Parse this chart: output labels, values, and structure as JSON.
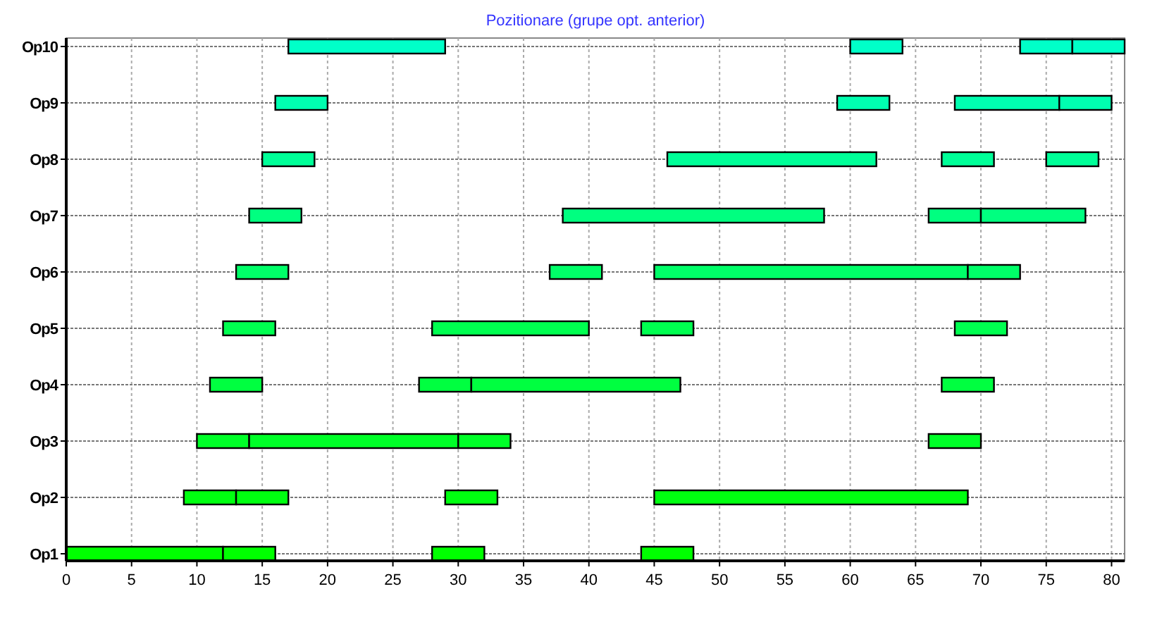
{
  "chart_data": {
    "type": "bar",
    "orientation": "horizontal",
    "title": "Pozitionare (grupe opt. anterior)",
    "categories": [
      "Op10",
      "Op9",
      "Op8",
      "Op7",
      "Op6",
      "Op5",
      "Op4",
      "Op3",
      "Op2",
      "Op1"
    ],
    "series": [
      {
        "base": [
          17,
          16,
          15,
          14,
          13,
          12,
          11,
          10,
          9,
          0
        ],
        "values": [
          12,
          4,
          4,
          4,
          4,
          4,
          4,
          4,
          4,
          12
        ],
        "colors": [
          "#00ffc8",
          "#00ffb0",
          "#00ff98",
          "#00ff80",
          "#00ff68",
          "#00ff50",
          "#00ff40",
          "#00ff28",
          "#00ff10",
          "#00ff00"
        ]
      },
      {
        "base": [
          60,
          59,
          46,
          38,
          37,
          28,
          27,
          14,
          13,
          12
        ],
        "values": [
          4,
          4,
          16,
          20,
          4,
          12,
          4,
          16,
          4,
          4
        ],
        "colors": [
          "#00ffc8",
          "#00ffb0",
          "#00ff98",
          "#00ff80",
          "#00ff68",
          "#00ff50",
          "#00ff40",
          "#00ff28",
          "#00ff10",
          "#00ff00"
        ]
      },
      {
        "base": [
          73,
          68,
          67,
          66,
          45,
          44,
          31,
          30,
          29,
          28
        ],
        "values": [
          4,
          8,
          4,
          4,
          24,
          4,
          16,
          4,
          4,
          4
        ],
        "colors": [
          "#00ffc8",
          "#00ffb0",
          "#00ff98",
          "#00ff80",
          "#00ff68",
          "#00ff50",
          "#00ff40",
          "#00ff28",
          "#00ff10",
          "#00ff00"
        ]
      },
      {
        "base": [
          77,
          76,
          75,
          70,
          69,
          68,
          67,
          66,
          45,
          44
        ],
        "values": [
          4,
          4,
          4,
          8,
          4,
          4,
          4,
          4,
          24,
          4
        ],
        "colors": [
          "#00ffc8",
          "#00ffb0",
          "#00ff98",
          "#00ff80",
          "#00ff68",
          "#00ff50",
          "#00ff40",
          "#00ff28",
          "#00ff10",
          "#00ff00"
        ]
      }
    ],
    "xlim": [
      0,
      81
    ],
    "xticks": [
      0,
      5,
      10,
      15,
      20,
      25,
      30,
      35,
      40,
      45,
      50,
      55,
      60,
      65,
      70,
      75,
      80
    ],
    "grid": true
  }
}
